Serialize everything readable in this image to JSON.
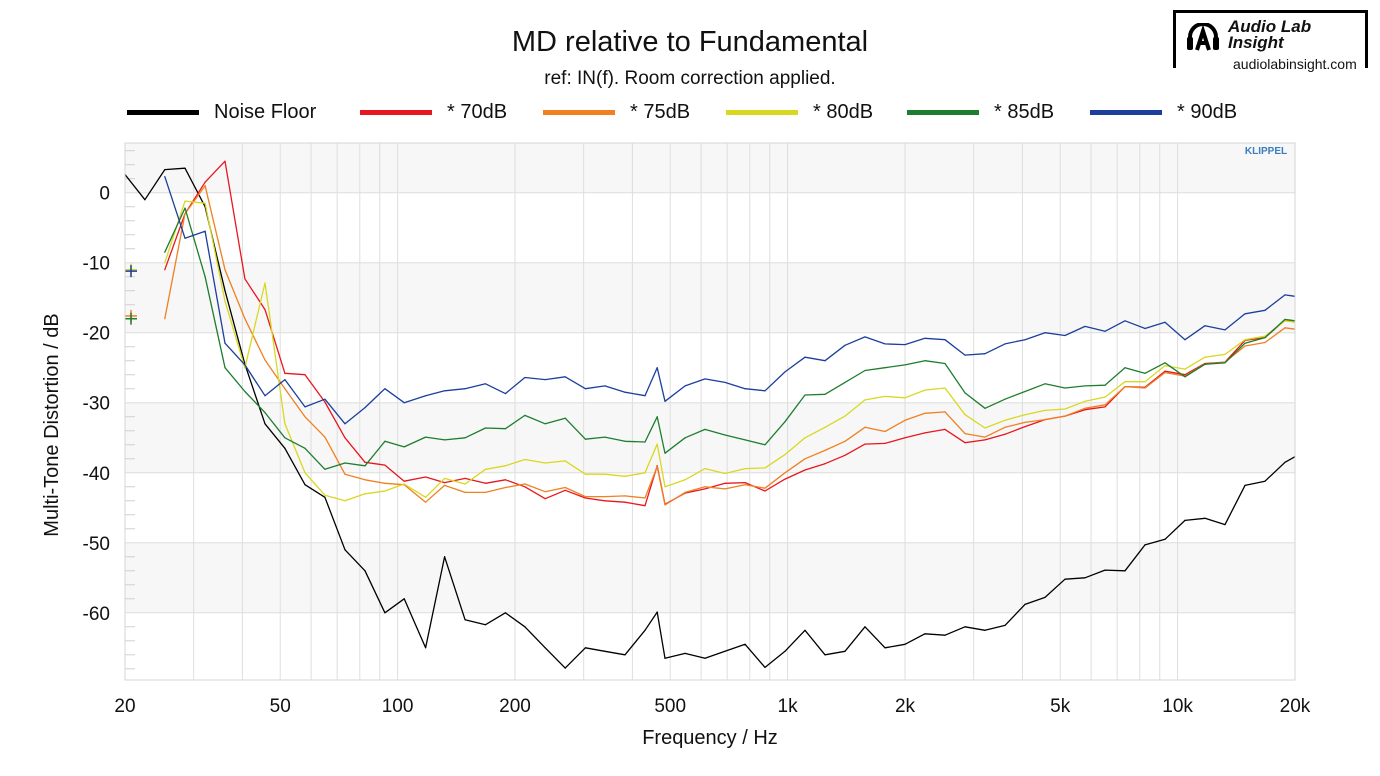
{
  "chart_data": {
    "type": "line",
    "title": "MD relative to Fundamental",
    "subtitle": "ref: IN(f). Room correction applied.",
    "xlabel": "Frequency / Hz",
    "ylabel": "Multi-Tone Distortion / dB",
    "xscale": "log",
    "xlim": [
      20,
      20000
    ],
    "ylim": [
      -69.6,
      7.1
    ],
    "grid": true,
    "legend_placement": "top",
    "x_ticks": [
      {
        "value": 20,
        "label": "20"
      },
      {
        "value": 50,
        "label": "50"
      },
      {
        "value": 100,
        "label": "100"
      },
      {
        "value": 200,
        "label": "200"
      },
      {
        "value": 500,
        "label": "500"
      },
      {
        "value": 1000,
        "label": "1k"
      },
      {
        "value": 2000,
        "label": "2k"
      },
      {
        "value": 5000,
        "label": "5k"
      },
      {
        "value": 10000,
        "label": "10k"
      },
      {
        "value": 20000,
        "label": "20k"
      }
    ],
    "y_ticks": [
      {
        "value": 0,
        "label": "0"
      },
      {
        "value": -10,
        "label": "-10"
      },
      {
        "value": -20,
        "label": "-20"
      },
      {
        "value": -30,
        "label": "-30"
      },
      {
        "value": -40,
        "label": "-40"
      },
      {
        "value": -50,
        "label": "-50"
      },
      {
        "value": -60,
        "label": "-60"
      }
    ],
    "x": [
      20,
      22.5,
      25.3,
      28.5,
      32.1,
      36.1,
      40.6,
      45.7,
      51.4,
      57.9,
      65.1,
      73.3,
      82.5,
      92.8,
      104,
      118,
      132,
      149,
      168,
      189,
      212,
      239,
      269,
      303,
      340,
      383,
      431,
      463,
      485,
      546,
      614,
      691,
      778,
      875,
      985,
      1108,
      1247,
      1403,
      1579,
      1777,
      2000,
      2250,
      2533,
      2850,
      3207,
      3609,
      4061,
      4570,
      5143,
      5787,
      6513,
      7329,
      8247,
      9281,
      10444,
      11753,
      13226,
      14884,
      16749,
      18848,
      20000
    ],
    "series": [
      {
        "name": "Noise Floor",
        "color": "#000000",
        "values": [
          2.6,
          -1,
          3.3,
          3.5,
          -2,
          -14,
          -24.5,
          -33,
          -36.5,
          -41.7,
          -43.5,
          -51,
          -54,
          -60,
          -58,
          -65,
          -52,
          -61,
          -61.7,
          -60,
          -62,
          -65,
          -67.9,
          -65,
          -65.5,
          -66,
          -62.5,
          -59.9,
          -66.5,
          -65.8,
          -66.5,
          -65.5,
          -64.5,
          -67.8,
          -65.5,
          -62.5,
          -66,
          -65.5,
          -62,
          -65,
          -64.5,
          -63,
          -63.2,
          -62,
          -62.5,
          -61.8,
          -58.8,
          -57.8,
          -55.2,
          -55,
          -53.9,
          -54,
          -50.3,
          -49.5,
          -46.8,
          -46.5,
          -47.4,
          -41.8,
          -41.2,
          -38.5,
          -37.7
        ]
      },
      {
        "name": "* 70dB",
        "color": "#e8161e",
        "values": [
          null,
          null,
          -11,
          -3,
          1.5,
          4.5,
          -12.3,
          -16.7,
          -25.8,
          -26,
          -29.9,
          -35,
          -38.5,
          -38.9,
          -41.2,
          -40.6,
          -41.4,
          -40.8,
          -41.5,
          -41,
          -42,
          -43.7,
          -42.5,
          -43.6,
          -44,
          -44.2,
          -44.7,
          -39,
          -44.5,
          -42.9,
          -42.3,
          -41.5,
          -41.4,
          -42.6,
          -40.9,
          -39.6,
          -38.7,
          -37.5,
          -35.9,
          -35.8,
          -35,
          -34.3,
          -33.8,
          -35.7,
          -35.3,
          -34.5,
          -33.4,
          -32.4,
          -31.9,
          -31,
          -30.6,
          -27.7,
          -27.8,
          -25.5,
          -26,
          -24.4,
          -24.2,
          -21.1,
          -20.7,
          -18.2,
          -18.3
        ]
      },
      {
        "name": "* 75dB",
        "color": "#f08020",
        "values": [
          null,
          null,
          -18,
          -3,
          1,
          -11,
          -18,
          -23.9,
          -28,
          -32,
          -34.9,
          -40.2,
          -41,
          -41.5,
          -41.7,
          -44.2,
          -41.8,
          -42.8,
          -42.8,
          -42.1,
          -41.6,
          -42.7,
          -42.1,
          -43.4,
          -43.4,
          -43.3,
          -43.6,
          -39.1,
          -44.6,
          -42.8,
          -42,
          -42.3,
          -41.7,
          -42.2,
          -40,
          -38,
          -36.8,
          -35.5,
          -33.5,
          -34.1,
          -32.5,
          -31.5,
          -31.3,
          -34.4,
          -34.9,
          -33.5,
          -32.8,
          -32.4,
          -31.9,
          -30.8,
          -30.3,
          -27.7,
          -27.9,
          -25.7,
          -26.2,
          -24.5,
          -24.2,
          -21.9,
          -21.4,
          -19.3,
          -19.5
        ]
      },
      {
        "name": "* 80dB",
        "color": "#d8d820",
        "values": [
          null,
          null,
          -10,
          -1.2,
          -1.5,
          -15.5,
          -25,
          -12.9,
          -33,
          -40,
          -43.2,
          -44,
          -43,
          -42.6,
          -41.6,
          -43.5,
          -40.8,
          -41.6,
          -39.5,
          -39,
          -38.1,
          -38.6,
          -38.3,
          -40.2,
          -40.2,
          -40.5,
          -40,
          -35.9,
          -42,
          -41,
          -39.4,
          -40.1,
          -39.4,
          -39.3,
          -37.4,
          -35,
          -33.5,
          -31.9,
          -29.6,
          -29.1,
          -29.3,
          -28.2,
          -27.9,
          -31.7,
          -33.6,
          -32.5,
          -31.7,
          -31.1,
          -30.9,
          -29.8,
          -29.2,
          -27,
          -27,
          -24.7,
          -25.2,
          -23.5,
          -23.1,
          -21,
          -20.5,
          -18.3,
          -18.5
        ]
      },
      {
        "name": "* 85dB",
        "color": "#1e7d2e",
        "values": [
          null,
          null,
          -8.5,
          -2.2,
          -12,
          -25,
          -28.4,
          -31.4,
          -35,
          -36.5,
          -39.5,
          -38.6,
          -39,
          -35.5,
          -36.3,
          -34.9,
          -35.3,
          -35,
          -33.6,
          -33.7,
          -31.8,
          -33,
          -32.2,
          -35.2,
          -34.9,
          -35.5,
          -35.6,
          -32,
          -37.2,
          -35,
          -33.8,
          -34.6,
          -35.3,
          -36,
          -32.7,
          -28.9,
          -28.8,
          -27.1,
          -25.4,
          -25,
          -24.6,
          -24,
          -24.4,
          -28.6,
          -30.8,
          -29.5,
          -28.4,
          -27.3,
          -27.9,
          -27.6,
          -27.5,
          -25,
          -25.8,
          -24.3,
          -26.3,
          -24.5,
          -24.3,
          -21.5,
          -20.7,
          -18.1,
          -18.3
        ]
      },
      {
        "name": "* 90dB",
        "color": "#1c3f9e",
        "values": [
          null,
          null,
          2.3,
          -6.5,
          -5.5,
          -21.5,
          -24.6,
          -29,
          -26.7,
          -30.6,
          -29.5,
          -33,
          -30.7,
          -28,
          -30,
          -29,
          -28.3,
          -28,
          -27.3,
          -28.7,
          -26.4,
          -26.7,
          -26.3,
          -28,
          -27.6,
          -28.5,
          -29,
          -25,
          -29.8,
          -27.6,
          -26.6,
          -27.1,
          -28,
          -28.3,
          -25.6,
          -23.5,
          -24,
          -21.8,
          -20.6,
          -21.6,
          -21.7,
          -20.8,
          -21,
          -23.2,
          -23,
          -21.6,
          -21,
          -20,
          -20.4,
          -19.1,
          -19.8,
          -18.3,
          -19.4,
          -18.5,
          -21,
          -19,
          -19.6,
          -17.3,
          -16.8,
          -14.6,
          -14.8
        ]
      }
    ],
    "markers": [
      {
        "series": "* 80dB",
        "value": -11,
        "color": "#d8d820"
      },
      {
        "series": "* 90dB",
        "value": -11.2,
        "color": "#1c3f9e"
      },
      {
        "series": "* 75dB",
        "value": -17.6,
        "color": "#f08020"
      },
      {
        "series": "* 85dB",
        "value": -18,
        "color": "#1e7d2e"
      }
    ]
  },
  "branding": {
    "klippel": "KLIPPEL",
    "logo_name_line1": "Audio Lab",
    "logo_name_line2": "Insight",
    "logo_url": "audiolabinsight.com"
  },
  "colors": {
    "band": "#f7f7f7",
    "grid": "#dedede"
  }
}
